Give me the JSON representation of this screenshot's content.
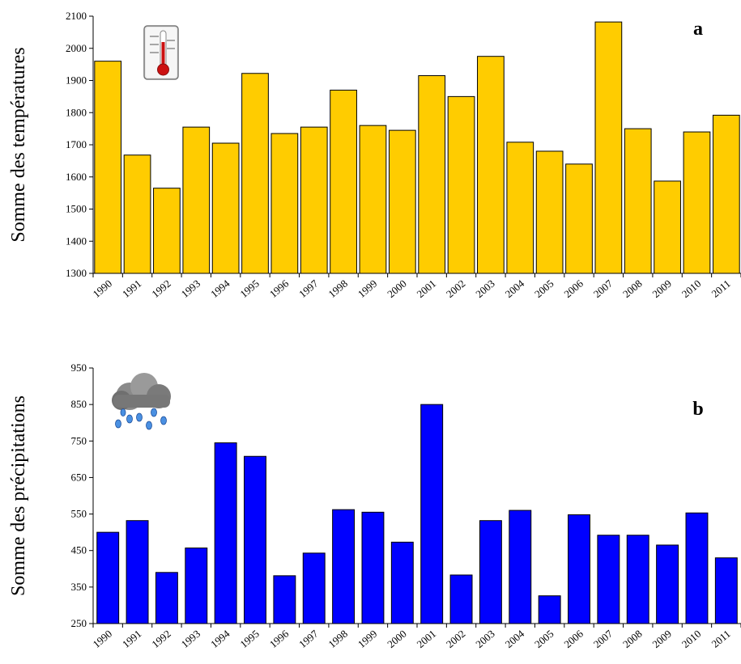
{
  "chart_data": [
    {
      "type": "bar",
      "y_label": "Somme des températures",
      "annotation": "a",
      "color": "#ffcc00",
      "categories": [
        "1990",
        "1991",
        "1992",
        "1993",
        "1994",
        "1995",
        "1996",
        "1997",
        "1998",
        "1999",
        "2000",
        "2001",
        "2002",
        "2003",
        "2004",
        "2005",
        "2006",
        "2007",
        "2008",
        "2009",
        "2010",
        "2011"
      ],
      "values": [
        1960,
        1668,
        1565,
        1755,
        1705,
        1922,
        1735,
        1755,
        1870,
        1760,
        1745,
        1915,
        1850,
        1975,
        1708,
        1680,
        1640,
        2082,
        1750,
        1587,
        1740,
        1792
      ],
      "ylim": [
        1300,
        2100
      ],
      "yticks": [
        1300,
        1400,
        1500,
        1600,
        1700,
        1800,
        1900,
        2000,
        2100
      ]
    },
    {
      "type": "bar",
      "y_label": "Somme des précipitations",
      "annotation": "b",
      "color": "#0000ff",
      "categories": [
        "1990",
        "1991",
        "1992",
        "1993",
        "1994",
        "1995",
        "1996",
        "1997",
        "1998",
        "1999",
        "2000",
        "2001",
        "2002",
        "2003",
        "2004",
        "2005",
        "2006",
        "2007",
        "2008",
        "2009",
        "2010",
        "2011"
      ],
      "values": [
        500,
        532,
        390,
        457,
        745,
        708,
        381,
        443,
        562,
        555,
        473,
        850,
        383,
        532,
        560,
        326,
        548,
        492,
        492,
        465,
        553,
        430
      ],
      "ylim": [
        250,
        950
      ],
      "yticks": [
        250,
        350,
        450,
        550,
        650,
        750,
        850,
        950
      ]
    }
  ]
}
